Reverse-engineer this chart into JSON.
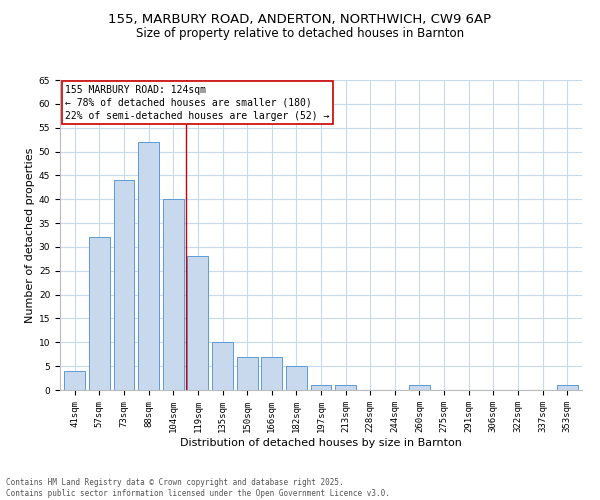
{
  "title_line1": "155, MARBURY ROAD, ANDERTON, NORTHWICH, CW9 6AP",
  "title_line2": "Size of property relative to detached houses in Barnton",
  "xlabel": "Distribution of detached houses by size in Barnton",
  "ylabel": "Number of detached properties",
  "categories": [
    "41sqm",
    "57sqm",
    "73sqm",
    "88sqm",
    "104sqm",
    "119sqm",
    "135sqm",
    "150sqm",
    "166sqm",
    "182sqm",
    "197sqm",
    "213sqm",
    "228sqm",
    "244sqm",
    "260sqm",
    "275sqm",
    "291sqm",
    "306sqm",
    "322sqm",
    "337sqm",
    "353sqm"
  ],
  "values": [
    4,
    32,
    44,
    52,
    40,
    28,
    10,
    7,
    7,
    5,
    1,
    1,
    0,
    0,
    1,
    0,
    0,
    0,
    0,
    0,
    1
  ],
  "bar_color": "#c8d9ee",
  "bar_edge_color": "#5b9bd5",
  "background_color": "#ffffff",
  "grid_color": "#c8d9ee",
  "annotation_text": "155 MARBURY ROAD: 124sqm\n← 78% of detached houses are smaller (180)\n22% of semi-detached houses are larger (52) →",
  "annotation_box_color": "#ffffff",
  "annotation_box_edge_color": "#cc0000",
  "vline_x": 4.5,
  "vline_color": "#cc0000",
  "ylim": [
    0,
    65
  ],
  "yticks": [
    0,
    5,
    10,
    15,
    20,
    25,
    30,
    35,
    40,
    45,
    50,
    55,
    60,
    65
  ],
  "footer_text": "Contains HM Land Registry data © Crown copyright and database right 2025.\nContains public sector information licensed under the Open Government Licence v3.0.",
  "title_fontsize": 9.5,
  "subtitle_fontsize": 8.5,
  "axis_label_fontsize": 8,
  "tick_fontsize": 6.5,
  "annotation_fontsize": 7,
  "footer_fontsize": 5.5
}
